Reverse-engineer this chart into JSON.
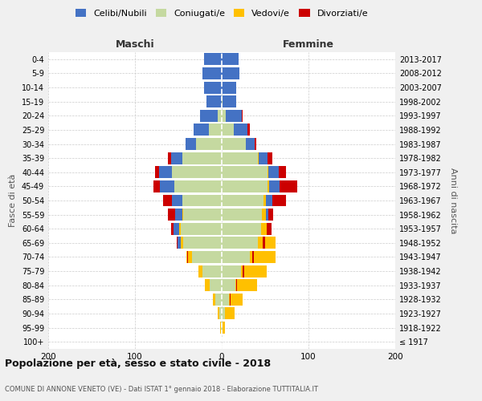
{
  "age_groups": [
    "100+",
    "95-99",
    "90-94",
    "85-89",
    "80-84",
    "75-79",
    "70-74",
    "65-69",
    "60-64",
    "55-59",
    "50-54",
    "45-49",
    "40-44",
    "35-39",
    "30-34",
    "25-29",
    "20-24",
    "15-19",
    "10-14",
    "5-9",
    "0-4"
  ],
  "birth_years": [
    "≤ 1917",
    "1918-1922",
    "1923-1927",
    "1928-1932",
    "1933-1937",
    "1938-1942",
    "1943-1947",
    "1948-1952",
    "1953-1957",
    "1958-1962",
    "1963-1967",
    "1968-1972",
    "1973-1977",
    "1978-1982",
    "1983-1987",
    "1988-1992",
    "1993-1997",
    "1998-2002",
    "2003-2007",
    "2008-2012",
    "2013-2017"
  ],
  "colors": {
    "celibe": "#4472c4",
    "coniugato": "#c5d9a0",
    "vedovo": "#ffc000",
    "divorziato": "#cc0000"
  },
  "males": {
    "celibe": [
      0,
      0,
      0,
      1,
      2,
      3,
      5,
      7,
      9,
      10,
      12,
      16,
      15,
      13,
      12,
      17,
      20,
      18,
      20,
      22,
      20
    ],
    "coniugato": [
      0,
      1,
      3,
      7,
      14,
      22,
      34,
      44,
      47,
      44,
      45,
      55,
      57,
      45,
      30,
      15,
      5,
      0,
      0,
      0,
      0
    ],
    "vedovo": [
      0,
      1,
      2,
      3,
      5,
      5,
      7,
      3,
      2,
      1,
      0,
      0,
      0,
      0,
      0,
      0,
      0,
      0,
      0,
      0,
      0
    ],
    "divorziato": [
      0,
      0,
      0,
      0,
      0,
      0,
      1,
      1,
      2,
      8,
      11,
      8,
      5,
      4,
      0,
      0,
      0,
      0,
      0,
      0,
      0
    ]
  },
  "females": {
    "nubile": [
      0,
      0,
      1,
      1,
      1,
      2,
      3,
      5,
      7,
      8,
      10,
      14,
      13,
      11,
      10,
      16,
      18,
      16,
      17,
      20,
      19
    ],
    "coniugata": [
      0,
      1,
      4,
      8,
      16,
      22,
      32,
      42,
      45,
      46,
      48,
      53,
      53,
      42,
      28,
      14,
      5,
      1,
      0,
      0,
      0
    ],
    "vedova": [
      0,
      3,
      11,
      16,
      25,
      30,
      30,
      20,
      12,
      5,
      3,
      2,
      1,
      1,
      0,
      0,
      0,
      0,
      0,
      0,
      0
    ],
    "divorziata": [
      0,
      0,
      0,
      1,
      1,
      2,
      2,
      3,
      5,
      5,
      16,
      20,
      8,
      5,
      2,
      2,
      1,
      0,
      0,
      0,
      0
    ]
  },
  "xlim": 200,
  "title": "Popolazione per età, sesso e stato civile - 2018",
  "subtitle": "COMUNE DI ANNONE VENETO (VE) - Dati ISTAT 1° gennaio 2018 - Elaborazione TUTTITALIA.IT",
  "ylabel_left": "Fasce di età",
  "ylabel_right": "Anni di nascita",
  "xlabel_left": "Maschi",
  "xlabel_right": "Femmine",
  "bg_color": "#f0f0f0",
  "plot_bg": "#ffffff"
}
